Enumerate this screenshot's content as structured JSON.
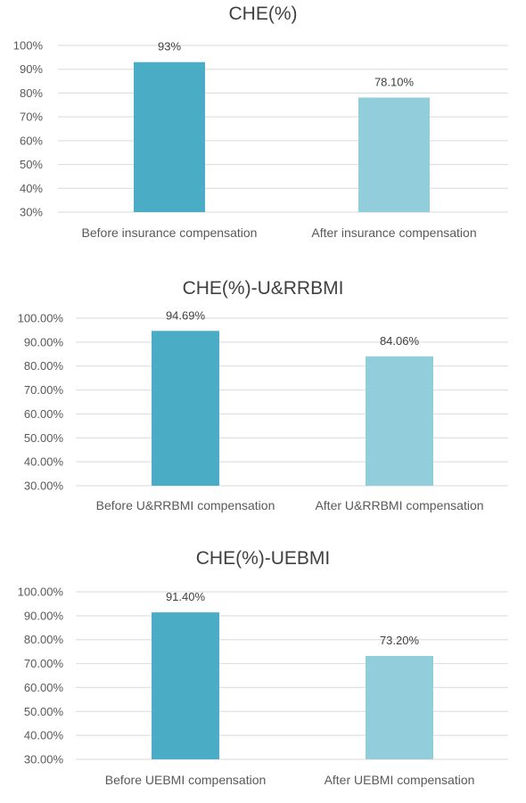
{
  "chart_data": [
    {
      "type": "bar",
      "title": "CHE(%)",
      "categories": [
        "Before insurance compensation",
        "After insurance compensation"
      ],
      "values": [
        93,
        78.1
      ],
      "data_labels": [
        "93%",
        "78.10%"
      ],
      "ylim": [
        30,
        100
      ],
      "yticks": [
        "30%",
        "40%",
        "50%",
        "60%",
        "70%",
        "80%",
        "90%",
        "100%"
      ],
      "colors": [
        "#4bacc6",
        "#92cddc"
      ],
      "grid": true,
      "legend": "none"
    },
    {
      "type": "bar",
      "title": "CHE(%)-U&RRBMI",
      "categories": [
        "Before U&RRBMI compensation",
        "After U&RRBMI compensation"
      ],
      "values": [
        94.69,
        84.06
      ],
      "data_labels": [
        "94.69%",
        "84.06%"
      ],
      "ylim": [
        30,
        100
      ],
      "yticks": [
        "30.00%",
        "40.00%",
        "50.00%",
        "60.00%",
        "70.00%",
        "80.00%",
        "90.00%",
        "100.00%"
      ],
      "colors": [
        "#4bacc6",
        "#92cddc"
      ],
      "grid": true,
      "legend": "none"
    },
    {
      "type": "bar",
      "title": "CHE(%)-UEBMI",
      "categories": [
        "Before UEBMI compensation",
        "After UEBMI compensation"
      ],
      "values": [
        91.4,
        73.2
      ],
      "data_labels": [
        "91.40%",
        "73.20%"
      ],
      "ylim": [
        30,
        100
      ],
      "yticks": [
        "30.00%",
        "40.00%",
        "50.00%",
        "60.00%",
        "70.00%",
        "80.00%",
        "90.00%",
        "100.00%"
      ],
      "colors": [
        "#4bacc6",
        "#92cddc"
      ],
      "grid": true,
      "legend": "none"
    }
  ]
}
